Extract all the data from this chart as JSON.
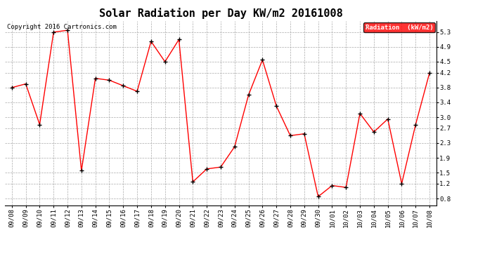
{
  "title": "Solar Radiation per Day KW/m2 20161008",
  "copyright": "Copyright 2016 Cartronics.com",
  "legend_label": "Radiation  (kW/m2)",
  "x_labels": [
    "09/08",
    "09/09",
    "09/10",
    "09/11",
    "09/12",
    "09/13",
    "09/14",
    "09/15",
    "09/16",
    "09/17",
    "09/18",
    "09/19",
    "09/20",
    "09/21",
    "09/22",
    "09/23",
    "09/24",
    "09/25",
    "09/26",
    "09/27",
    "09/28",
    "09/29",
    "09/30",
    "10/01",
    "10/02",
    "10/03",
    "10/04",
    "10/05",
    "10/06",
    "10/07",
    "10/08"
  ],
  "y_values": [
    3.8,
    3.9,
    2.8,
    5.3,
    5.35,
    1.55,
    4.05,
    4.0,
    3.85,
    3.7,
    5.05,
    4.5,
    5.1,
    1.25,
    1.6,
    1.65,
    2.2,
    3.6,
    4.55,
    3.3,
    2.5,
    2.55,
    0.85,
    1.15,
    1.1,
    3.1,
    2.6,
    2.95,
    1.2,
    2.8,
    4.2
  ],
  "y_ticks": [
    0.8,
    1.2,
    1.5,
    1.9,
    2.3,
    2.7,
    3.0,
    3.4,
    3.8,
    4.2,
    4.5,
    4.9,
    5.3
  ],
  "ylim": [
    0.62,
    5.6
  ],
  "line_color": "red",
  "marker_color": "black",
  "background_color": "white",
  "grid_color": "#aaaaaa",
  "legend_bg": "red",
  "legend_text_color": "white",
  "title_fontsize": 11,
  "tick_fontsize": 6.5,
  "copyright_fontsize": 6.5
}
